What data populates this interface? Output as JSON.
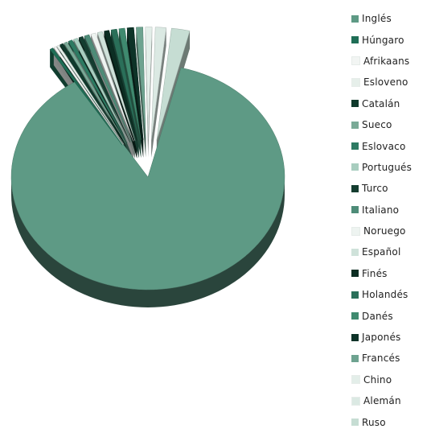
{
  "chart_data": {
    "type": "pie",
    "style": "3d-exploded",
    "title": "",
    "legend_position": "right",
    "series": [
      {
        "label": "Inglés",
        "value": 89.0,
        "color": "#5e9a85"
      },
      {
        "label": "Húngaro",
        "value": 0.4,
        "color": "#1f6e56"
      },
      {
        "label": "Afrikaans",
        "value": 0.3,
        "color": "#f2f5f3"
      },
      {
        "label": "Esloveno",
        "value": 0.3,
        "color": "#e6efea"
      },
      {
        "label": "Catalán",
        "value": 0.4,
        "color": "#0f3a2c"
      },
      {
        "label": "Sueco",
        "value": 0.4,
        "color": "#7aaa97"
      },
      {
        "label": "Eslovaco",
        "value": 0.5,
        "color": "#2d7a62"
      },
      {
        "label": "Portugués",
        "value": 0.5,
        "color": "#a8cdbf"
      },
      {
        "label": "Turco",
        "value": 0.5,
        "color": "#143d30"
      },
      {
        "label": "Italiano",
        "value": 0.6,
        "color": "#4e8c78"
      },
      {
        "label": "Noruego",
        "value": 0.6,
        "color": "#eef4f1"
      },
      {
        "label": "Español",
        "value": 0.6,
        "color": "#cfe2da"
      },
      {
        "label": "Finés",
        "value": 0.6,
        "color": "#0c2e23"
      },
      {
        "label": "Holandés",
        "value": 0.7,
        "color": "#2a6f59"
      },
      {
        "label": "Danés",
        "value": 0.7,
        "color": "#3f8a6f"
      },
      {
        "label": "Japonés",
        "value": 0.8,
        "color": "#0e3328"
      },
      {
        "label": "Francés",
        "value": 0.8,
        "color": "#6ea390"
      },
      {
        "label": "Chino",
        "value": 0.8,
        "color": "#e3eee9"
      },
      {
        "label": "Alemán",
        "value": 1.3,
        "color": "#dbe9e3"
      },
      {
        "label": "Ruso",
        "value": 2.2,
        "color": "#c6ddd3"
      }
    ]
  }
}
